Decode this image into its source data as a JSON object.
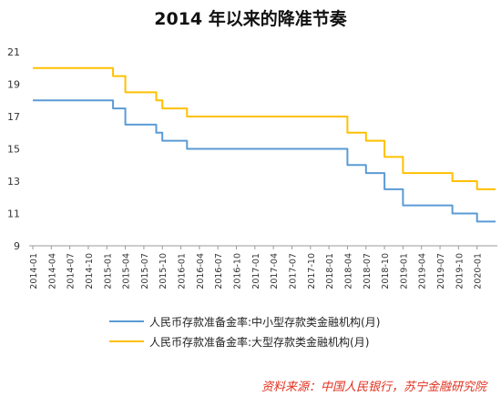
{
  "chart_data": {
    "type": "line",
    "title": "2014 年以来的降准节奏",
    "xlabel": "",
    "ylabel": "",
    "ylim": [
      9,
      21
    ],
    "yticks": [
      9,
      11,
      13,
      15,
      17,
      19,
      21
    ],
    "xticks": [
      "2014-01",
      "2014-04",
      "2014-07",
      "2014-10",
      "2015-01",
      "2015-04",
      "2015-07",
      "2015-10",
      "2016-01",
      "2016-04",
      "2016-07",
      "2016-10",
      "2017-01",
      "2017-04",
      "2017-07",
      "2017-10",
      "2018-01",
      "2018-04",
      "2018-07",
      "2018-10",
      "2019-01",
      "2019-04",
      "2019-07",
      "2019-10",
      "2020-01"
    ],
    "x_range_months": [
      "2014-01",
      "2020-04"
    ],
    "grid": false,
    "legend": "bottom-left",
    "series": [
      {
        "name": "人民币存款准备金率:中小型存款类金融机构(月)",
        "color": "#5b9bd5",
        "points": [
          [
            "2014-01",
            18
          ],
          [
            "2015-02",
            18
          ],
          [
            "2015-02",
            17.5
          ],
          [
            "2015-04",
            17.5
          ],
          [
            "2015-04",
            16.5
          ],
          [
            "2015-09",
            16.5
          ],
          [
            "2015-09",
            16
          ],
          [
            "2015-10",
            16
          ],
          [
            "2015-10",
            15.5
          ],
          [
            "2016-02",
            15.5
          ],
          [
            "2016-02",
            15
          ],
          [
            "2018-04",
            15
          ],
          [
            "2018-04",
            14
          ],
          [
            "2018-07",
            14
          ],
          [
            "2018-07",
            13.5
          ],
          [
            "2018-10",
            13.5
          ],
          [
            "2018-10",
            12.5
          ],
          [
            "2019-01",
            12.5
          ],
          [
            "2019-01",
            11.5
          ],
          [
            "2019-09",
            11.5
          ],
          [
            "2019-09",
            11
          ],
          [
            "2020-01",
            11
          ],
          [
            "2020-01",
            10.5
          ],
          [
            "2020-04",
            10.5
          ]
        ]
      },
      {
        "name": "人民币存款准备金率:大型存款类金融机构(月)",
        "color": "#ffc000",
        "points": [
          [
            "2014-01",
            20
          ],
          [
            "2015-02",
            20
          ],
          [
            "2015-02",
            19.5
          ],
          [
            "2015-04",
            19.5
          ],
          [
            "2015-04",
            18.5
          ],
          [
            "2015-09",
            18.5
          ],
          [
            "2015-09",
            18
          ],
          [
            "2015-10",
            18
          ],
          [
            "2015-10",
            17.5
          ],
          [
            "2016-02",
            17.5
          ],
          [
            "2016-02",
            17
          ],
          [
            "2018-04",
            17
          ],
          [
            "2018-04",
            16
          ],
          [
            "2018-07",
            16
          ],
          [
            "2018-07",
            15.5
          ],
          [
            "2018-10",
            15.5
          ],
          [
            "2018-10",
            14.5
          ],
          [
            "2019-01",
            14.5
          ],
          [
            "2019-01",
            13.5
          ],
          [
            "2019-09",
            13.5
          ],
          [
            "2019-09",
            13
          ],
          [
            "2020-01",
            13
          ],
          [
            "2020-01",
            12.5
          ],
          [
            "2020-04",
            12.5
          ]
        ]
      }
    ],
    "source": "资料来源：中国人民银行，苏宁金融研究院"
  }
}
